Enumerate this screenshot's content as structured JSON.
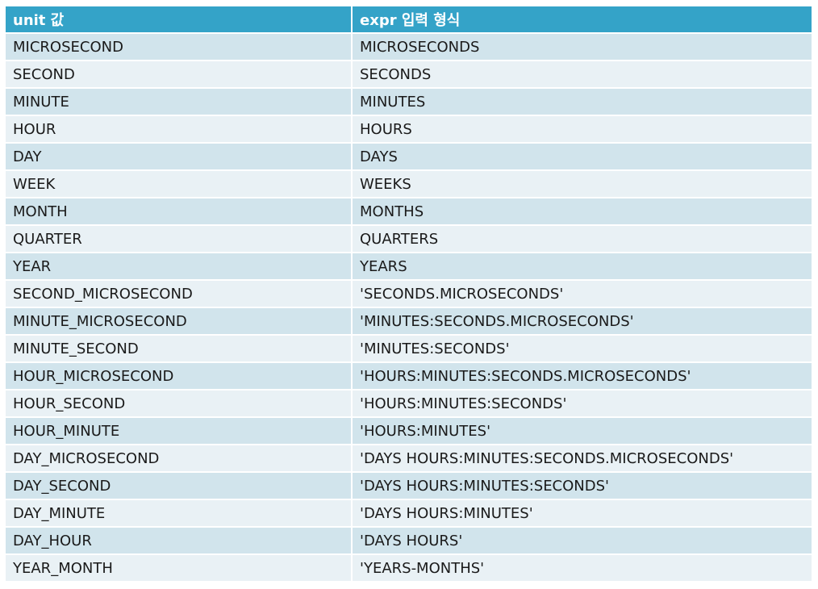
{
  "table": {
    "headers": [
      "unit 값",
      "expr 입력 형식"
    ],
    "rows": [
      [
        "MICROSECOND",
        "MICROSECONDS"
      ],
      [
        "SECOND",
        "SECONDS"
      ],
      [
        "MINUTE",
        "MINUTES"
      ],
      [
        "HOUR",
        "HOURS"
      ],
      [
        "DAY",
        "DAYS"
      ],
      [
        "WEEK",
        "WEEKS"
      ],
      [
        "MONTH",
        "MONTHS"
      ],
      [
        "QUARTER",
        "QUARTERS"
      ],
      [
        "YEAR",
        "YEARS"
      ],
      [
        "SECOND_MICROSECOND",
        "'SECONDS.MICROSECONDS'"
      ],
      [
        "MINUTE_MICROSECOND",
        "'MINUTES:SECONDS.MICROSECONDS'"
      ],
      [
        "MINUTE_SECOND",
        "'MINUTES:SECONDS'"
      ],
      [
        "HOUR_MICROSECOND",
        "'HOURS:MINUTES:SECONDS.MICROSECONDS'"
      ],
      [
        "HOUR_SECOND",
        "'HOURS:MINUTES:SECONDS'"
      ],
      [
        "HOUR_MINUTE",
        "'HOURS:MINUTES'"
      ],
      [
        "DAY_MICROSECOND",
        "'DAYS HOURS:MINUTES:SECONDS.MICROSECONDS'"
      ],
      [
        "DAY_SECOND",
        "'DAYS HOURS:MINUTES:SECONDS'"
      ],
      [
        "DAY_MINUTE",
        "'DAYS HOURS:MINUTES'"
      ],
      [
        "DAY_HOUR",
        "'DAYS HOURS'"
      ],
      [
        "YEAR_MONTH",
        "'YEARS-MONTHS'"
      ]
    ]
  },
  "colors": {
    "header_bg": "#34a3c8",
    "row_odd_bg": "#d1e4ec",
    "row_even_bg": "#e9f1f5"
  }
}
